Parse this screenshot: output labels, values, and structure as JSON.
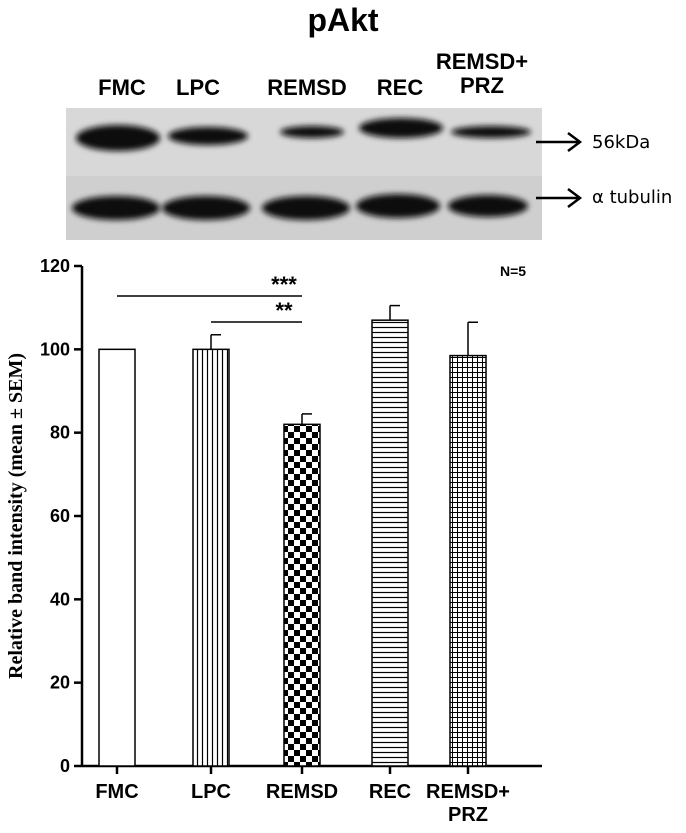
{
  "title": "pAkt",
  "blot": {
    "lanes": [
      "FMC",
      "LPC",
      "REMSD",
      "REC",
      "REMSD+ PRZ"
    ],
    "lane_lines": [
      [
        "FMC"
      ],
      [
        "LPC"
      ],
      [
        "REMSD"
      ],
      [
        "REC"
      ],
      [
        "REMSD+",
        "PRZ"
      ]
    ],
    "markers": [
      "56kDa",
      "α tubulin"
    ],
    "colors": {
      "top_bg": "#d8d8d8",
      "bottom_bg": "#cfcfcf",
      "band": "#111111"
    }
  },
  "chart_data": {
    "type": "bar",
    "categories": [
      "FMC",
      "LPC",
      "REMSD",
      "REC",
      "REMSD+ PRZ"
    ],
    "category_lines": [
      [
        "FMC"
      ],
      [
        "LPC"
      ],
      [
        "REMSD"
      ],
      [
        "REC"
      ],
      [
        "REMSD+",
        "PRZ"
      ]
    ],
    "values": [
      100,
      100,
      82,
      107,
      98.5
    ],
    "errors": [
      0,
      3.5,
      2.5,
      3.5,
      8
    ],
    "patterns": [
      "open",
      "vertical-lines",
      "checkerboard",
      "horizontal-lines",
      "crosshatch"
    ],
    "ylabel": "Relative band intensity (mean ± SEM)",
    "xlabel": "",
    "ylim": [
      0,
      120
    ],
    "yticks": [
      0,
      20,
      40,
      60,
      80,
      100,
      120
    ],
    "annotations": {
      "n_label": "N=5",
      "significance": [
        {
          "from": "FMC",
          "to": "REMSD",
          "label": "***"
        },
        {
          "from": "LPC",
          "to": "REMSD",
          "label": "**"
        }
      ]
    },
    "grid": false,
    "legend": "none"
  }
}
